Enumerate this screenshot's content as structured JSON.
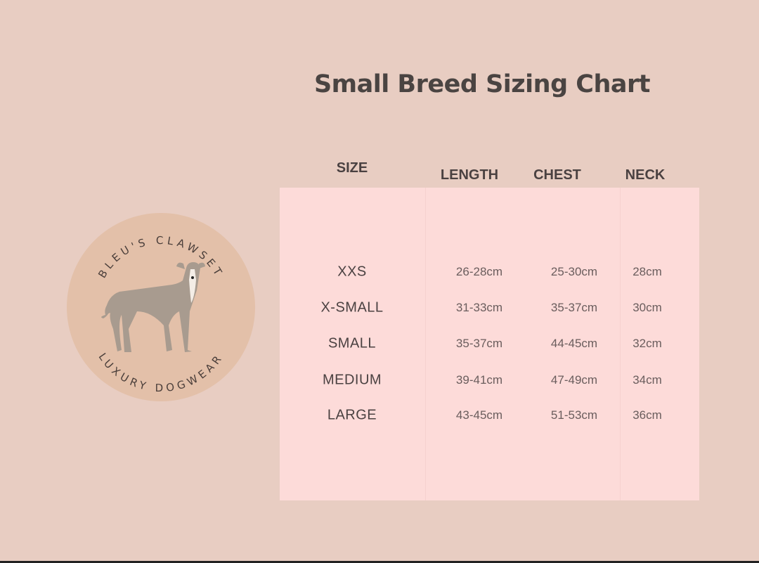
{
  "title": "Small Breed Sizing Chart",
  "logo": {
    "top_text": "BLEU'S CLAWSET",
    "bottom_text": "LUXURY DOGWEAR",
    "circle_color": "#e3c0a9"
  },
  "colors": {
    "background": "#e8cdc2",
    "table": "#fddbd9",
    "text": "#4a4141"
  },
  "table": {
    "headers": [
      "SIZE",
      "LENGTH",
      "CHEST",
      "NECK"
    ],
    "rows": [
      {
        "size": "XXS",
        "length": "26-28cm",
        "chest": "25-30cm",
        "neck": "28cm"
      },
      {
        "size": "X-SMALL",
        "length": "31-33cm",
        "chest": "35-37cm",
        "neck": "30cm"
      },
      {
        "size": "SMALL",
        "length": "35-37cm",
        "chest": "44-45cm",
        "neck": "32cm"
      },
      {
        "size": "MEDIUM",
        "length": "39-41cm",
        "chest": "47-49cm",
        "neck": "34cm"
      },
      {
        "size": "LARGE",
        "length": "43-45cm",
        "chest": "51-53cm",
        "neck": "36cm"
      }
    ]
  }
}
